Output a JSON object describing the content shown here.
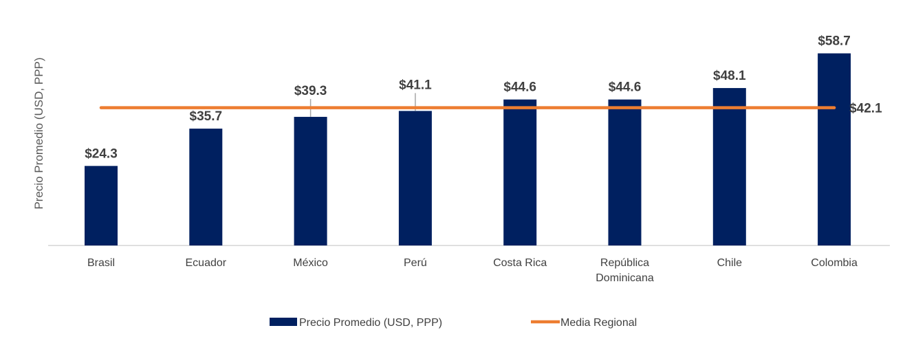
{
  "chart_data": {
    "type": "bar",
    "title": "",
    "xlabel": "",
    "ylabel": "Precio Promedio (USD, PPP)",
    "ylim": [
      0,
      62
    ],
    "grid": false,
    "categories": [
      [
        "Brasil"
      ],
      [
        "Ecuador"
      ],
      [
        "México"
      ],
      [
        "Perú"
      ],
      [
        "Costa Rica"
      ],
      [
        "República",
        "Dominicana"
      ],
      [
        "Chile"
      ],
      [
        "Colombia"
      ]
    ],
    "series": [
      {
        "name": "Precio Promedio (USD, PPP)",
        "type": "bar",
        "color": "#002060",
        "values": [
          24.3,
          35.7,
          39.3,
          41.1,
          44.6,
          44.6,
          48.1,
          58.7
        ],
        "labels": [
          "$24.3",
          "$35.7",
          "$39.3",
          "$41.1",
          "$44.6",
          "$44.6",
          "$48.1",
          "$58.7"
        ]
      },
      {
        "name": "Media Regional",
        "type": "line",
        "color": "#ED7D31",
        "value": 42.1,
        "label": "$42.1"
      }
    ],
    "legend_position": "bottom"
  }
}
